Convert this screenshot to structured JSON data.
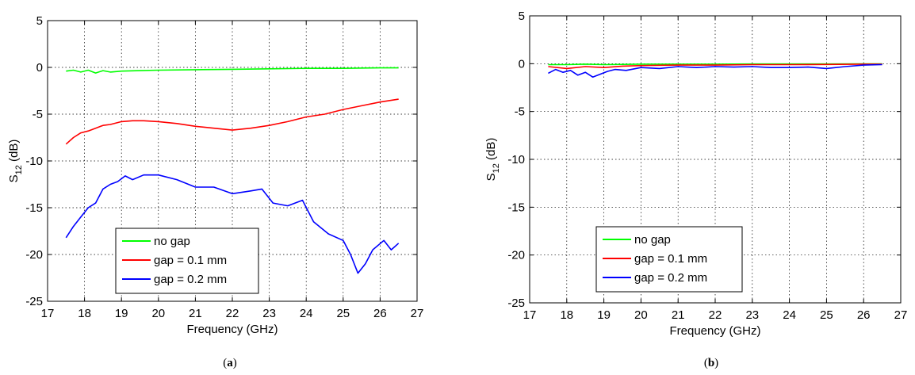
{
  "chart_data": [
    {
      "type": "line",
      "caption_pre": "(",
      "caption_letter": "a",
      "caption_post": ")",
      "xlabel": "Frequency (GHz)",
      "ylabel_main": "S",
      "ylabel_sub": "12",
      "ylabel_unit": " (dB)",
      "xlim": [
        17,
        27
      ],
      "ylim": [
        -25,
        5
      ],
      "xticks": [
        "17",
        "18",
        "19",
        "20",
        "21",
        "22",
        "23",
        "24",
        "25",
        "26",
        "27"
      ],
      "yticks": [
        "5",
        "0",
        "-5",
        "-10",
        "-15",
        "-20",
        "-25"
      ],
      "grid": true,
      "legend_position": "bottom-left",
      "series": [
        {
          "name": "no gap",
          "color": "#00ff00",
          "x": [
            17.5,
            17.7,
            17.9,
            18.1,
            18.3,
            18.5,
            18.7,
            19.0,
            19.5,
            20,
            21,
            22,
            23,
            24,
            25,
            26,
            26.5
          ],
          "y": [
            -0.4,
            -0.3,
            -0.5,
            -0.3,
            -0.6,
            -0.35,
            -0.5,
            -0.4,
            -0.35,
            -0.3,
            -0.25,
            -0.2,
            -0.15,
            -0.1,
            -0.1,
            -0.05,
            -0.05
          ]
        },
        {
          "name": "gap = 0.1 mm",
          "color": "#ff0000",
          "x": [
            17.5,
            17.7,
            17.9,
            18.1,
            18.3,
            18.5,
            18.7,
            19.0,
            19.3,
            19.6,
            20,
            20.5,
            21,
            21.5,
            22,
            22.5,
            23,
            23.5,
            24,
            24.5,
            25,
            25.5,
            26,
            26.5
          ],
          "y": [
            -8.2,
            -7.5,
            -7.0,
            -6.8,
            -6.5,
            -6.2,
            -6.1,
            -5.8,
            -5.7,
            -5.7,
            -5.8,
            -6.0,
            -6.3,
            -6.5,
            -6.7,
            -6.5,
            -6.2,
            -5.8,
            -5.3,
            -5.0,
            -4.5,
            -4.1,
            -3.7,
            -3.4
          ]
        },
        {
          "name": "gap = 0.2 mm",
          "color": "#0000ff",
          "x": [
            17.5,
            17.7,
            17.9,
            18.1,
            18.3,
            18.5,
            18.7,
            18.9,
            19.1,
            19.3,
            19.6,
            20,
            20.5,
            21,
            21.5,
            22,
            22.5,
            22.8,
            23.1,
            23.5,
            23.9,
            24.2,
            24.6,
            25,
            25.2,
            25.4,
            25.6,
            25.8,
            26.1,
            26.3,
            26.5
          ],
          "y": [
            -18.2,
            -17.0,
            -16.0,
            -15.0,
            -14.5,
            -13.0,
            -12.5,
            -12.2,
            -11.6,
            -12.0,
            -11.5,
            -11.5,
            -12.0,
            -12.8,
            -12.8,
            -13.5,
            -13.2,
            -13.0,
            -14.5,
            -14.8,
            -14.2,
            -16.5,
            -17.8,
            -18.5,
            -20.0,
            -22.0,
            -21.0,
            -19.5,
            -18.5,
            -19.5,
            -18.8
          ]
        }
      ]
    },
    {
      "type": "line",
      "caption_pre": "(",
      "caption_letter": "b",
      "caption_post": ")",
      "xlabel": "Frequency (GHz)",
      "ylabel_main": "S",
      "ylabel_sub": "12",
      "ylabel_unit": " (dB)",
      "xlim": [
        17,
        27
      ],
      "ylim": [
        -25,
        5
      ],
      "xticks": [
        "17",
        "18",
        "19",
        "20",
        "21",
        "22",
        "23",
        "24",
        "25",
        "26",
        "27"
      ],
      "yticks": [
        "5",
        "0",
        "-5",
        "-10",
        "-15",
        "-20",
        "-25"
      ],
      "grid": true,
      "legend_position": "bottom-left",
      "series": [
        {
          "name": "no gap",
          "color": "#00ff00",
          "x": [
            17.5,
            18,
            18.5,
            19,
            20,
            21,
            22,
            23,
            24,
            25,
            26,
            26.5
          ],
          "y": [
            -0.1,
            -0.1,
            -0.05,
            -0.1,
            -0.05,
            -0.05,
            -0.05,
            -0.03,
            -0.03,
            -0.03,
            -0.02,
            -0.02
          ]
        },
        {
          "name": "gap = 0.1 mm",
          "color": "#ff0000",
          "x": [
            17.5,
            18,
            18.5,
            19,
            19.5,
            20,
            21,
            22,
            23,
            24,
            25,
            26,
            26.5
          ],
          "y": [
            -0.3,
            -0.5,
            -0.3,
            -0.4,
            -0.25,
            -0.2,
            -0.15,
            -0.15,
            -0.1,
            -0.1,
            -0.08,
            -0.05,
            -0.05
          ]
        },
        {
          "name": "gap = 0.2 mm",
          "color": "#0000ff",
          "x": [
            17.5,
            17.7,
            17.9,
            18.1,
            18.3,
            18.5,
            18.7,
            18.9,
            19.1,
            19.3,
            19.6,
            20,
            20.5,
            21,
            21.5,
            22,
            22.5,
            23,
            23.5,
            24,
            24.5,
            25,
            25.5,
            26,
            26.5
          ],
          "y": [
            -1.0,
            -0.6,
            -0.9,
            -0.7,
            -1.2,
            -0.9,
            -1.4,
            -1.1,
            -0.8,
            -0.6,
            -0.7,
            -0.4,
            -0.5,
            -0.3,
            -0.4,
            -0.3,
            -0.35,
            -0.3,
            -0.4,
            -0.4,
            -0.35,
            -0.5,
            -0.3,
            -0.15,
            -0.1
          ]
        }
      ]
    }
  ]
}
